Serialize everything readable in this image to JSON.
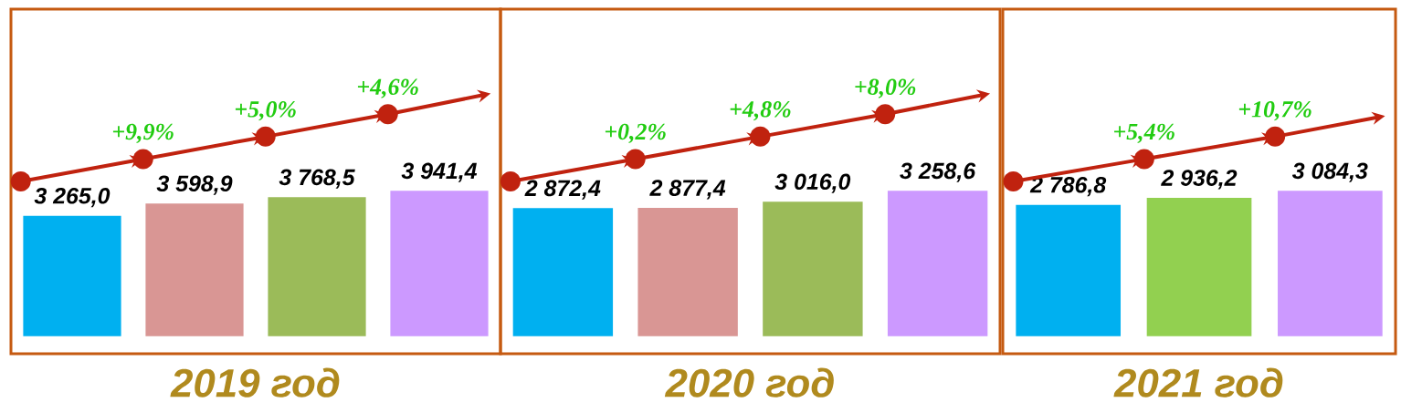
{
  "chart_data": [
    {
      "type": "bar",
      "title": "2019 год",
      "categories": [
        null,
        null,
        null,
        null
      ],
      "values": [
        3265.0,
        3598.9,
        3768.5,
        3941.4
      ],
      "colors": [
        "#00b0f0",
        "#d99694",
        "#9bbb59",
        "#cc99ff"
      ],
      "value_labels": [
        "3 265,0",
        "3 598,9",
        "3 768,5",
        "3 941,4"
      ],
      "annotations": [
        "+9,9%",
        "+5,0%",
        "+4,6%"
      ]
    },
    {
      "type": "bar",
      "title": "2020 год",
      "categories": [
        null,
        null,
        null,
        null
      ],
      "values": [
        2872.4,
        2877.4,
        3016.0,
        3258.6
      ],
      "colors": [
        "#00b0f0",
        "#d99694",
        "#9bbb59",
        "#cc99ff"
      ],
      "value_labels": [
        "2 872,4",
        "2 877,4",
        "3 016,0",
        "3 258,6"
      ],
      "annotations": [
        "+0,2%",
        "+4,8%",
        "+8,0%"
      ]
    },
    {
      "type": "bar",
      "title": "2021 год",
      "categories": [
        null,
        null,
        null
      ],
      "values": [
        2786.8,
        2936.2,
        3084.3
      ],
      "colors": [
        "#00b0f0",
        "#92d050",
        "#cc99ff"
      ],
      "value_labels": [
        "2 786,8",
        "2 936,2",
        "3 084,3"
      ],
      "annotations": [
        "+5,4%",
        "+10,7%"
      ]
    }
  ]
}
